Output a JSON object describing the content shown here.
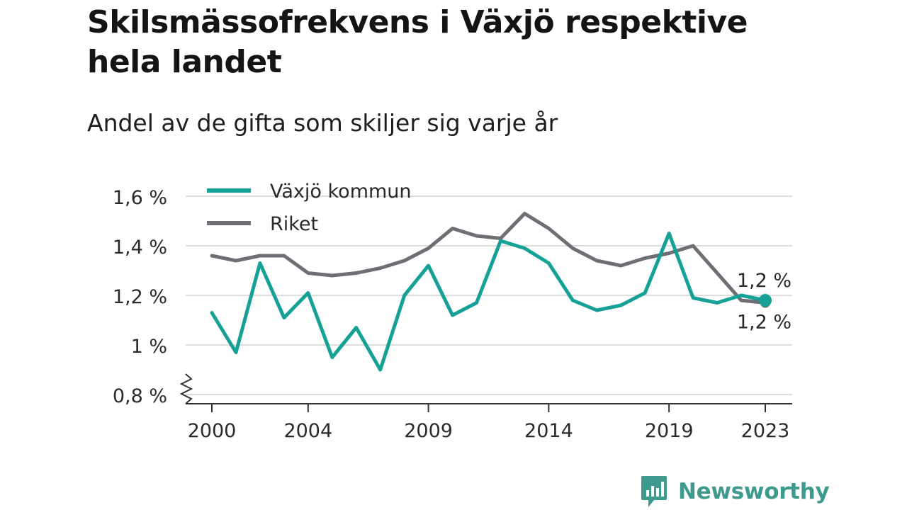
{
  "title": "Skilsmässofrekvens i Växjö respektive hela landet",
  "subtitle": "Andel av de gifta som skiljer sig varje år",
  "brand": "Newsworthy",
  "colors": {
    "vaxjo": "#16a196",
    "riket": "#6e6e74",
    "grid": "#dcdcdc",
    "axis": "#333333",
    "brand": "#3f9a8e"
  },
  "chart_data": {
    "type": "line",
    "x": [
      2000,
      2001,
      2002,
      2003,
      2004,
      2005,
      2006,
      2007,
      2008,
      2009,
      2010,
      2011,
      2012,
      2013,
      2014,
      2015,
      2016,
      2017,
      2018,
      2019,
      2020,
      2021,
      2022,
      2023
    ],
    "x_ticks": [
      2000,
      2004,
      2009,
      2014,
      2019,
      2023
    ],
    "x_tick_labels": [
      "2000",
      "2004",
      "2009",
      "2014",
      "2019",
      "2023"
    ],
    "y_ticks": [
      0.8,
      1.0,
      1.2,
      1.4,
      1.6
    ],
    "y_tick_labels": [
      "0,8 %",
      "1 %",
      "1,2 %",
      "1,4 %",
      "1,6 %"
    ],
    "ylim": [
      0.8,
      1.6
    ],
    "y_axis_break": true,
    "grid": true,
    "legend_position": "top-left",
    "series": [
      {
        "name": "Växjö kommun",
        "color": "#16a196",
        "values": [
          1.13,
          0.97,
          1.33,
          1.11,
          1.21,
          0.95,
          1.07,
          0.9,
          1.2,
          1.32,
          1.12,
          1.17,
          1.42,
          1.39,
          1.33,
          1.18,
          1.14,
          1.16,
          1.21,
          1.45,
          1.19,
          1.17,
          1.2,
          1.18
        ],
        "end_label": "1,2 %"
      },
      {
        "name": "Riket",
        "color": "#6e6e74",
        "values": [
          1.36,
          1.34,
          1.36,
          1.36,
          1.29,
          1.28,
          1.29,
          1.31,
          1.34,
          1.39,
          1.47,
          1.44,
          1.43,
          1.53,
          1.47,
          1.39,
          1.34,
          1.32,
          1.35,
          1.37,
          1.4,
          1.29,
          1.18,
          1.17
        ],
        "end_label": "1,2 %"
      }
    ]
  }
}
